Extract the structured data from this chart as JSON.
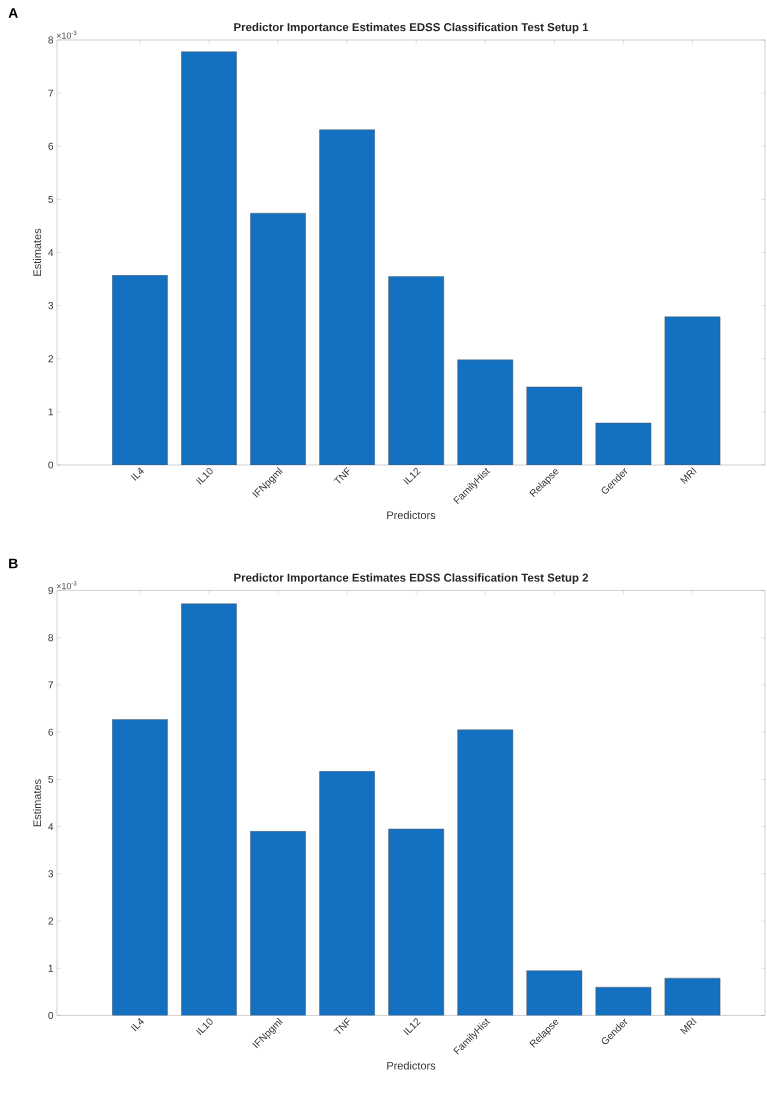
{
  "chart_data": [
    {
      "type": "bar",
      "title": "Predictor Importance Estimates EDSS Classification Test Setup 1",
      "xlabel": "Predictors",
      "ylabel": "Estimates",
      "categories": [
        "IL4",
        "IL10",
        "IFNpgml",
        "TNF",
        "IL12",
        "FamilyHist",
        "Relapse",
        "Gender",
        "MRI"
      ],
      "values": [
        3.57,
        7.78,
        4.74,
        6.31,
        3.55,
        1.98,
        1.47,
        0.79,
        2.79
      ],
      "color": "#1470c0",
      "ylim": [
        0,
        8
      ],
      "yticks": [
        0,
        1,
        2,
        3,
        4,
        5,
        6,
        7,
        8
      ],
      "annotations": [
        "A",
        "×10$^{-3}$"
      ]
    },
    {
      "type": "bar",
      "title": "Predictor Importance Estimates EDSS Classification Test Setup 2",
      "xlabel": "Predictors",
      "ylabel": "Estimates",
      "categories": [
        "IL4",
        "IL10",
        "IFNpgml",
        "TNF",
        "IL12",
        "FamilyHist",
        "Relapse",
        "Gender",
        "MRI"
      ],
      "values": [
        6.27,
        8.72,
        3.9,
        5.17,
        3.95,
        6.05,
        0.95,
        0.6,
        0.79
      ],
      "color": "#1470c0",
      "ylim": [
        0,
        9
      ],
      "yticks": [
        0,
        1,
        2,
        3,
        4,
        5,
        6,
        7,
        8,
        9
      ],
      "annotations": [
        "B",
        "×10$^{-3}$"
      ]
    }
  ]
}
